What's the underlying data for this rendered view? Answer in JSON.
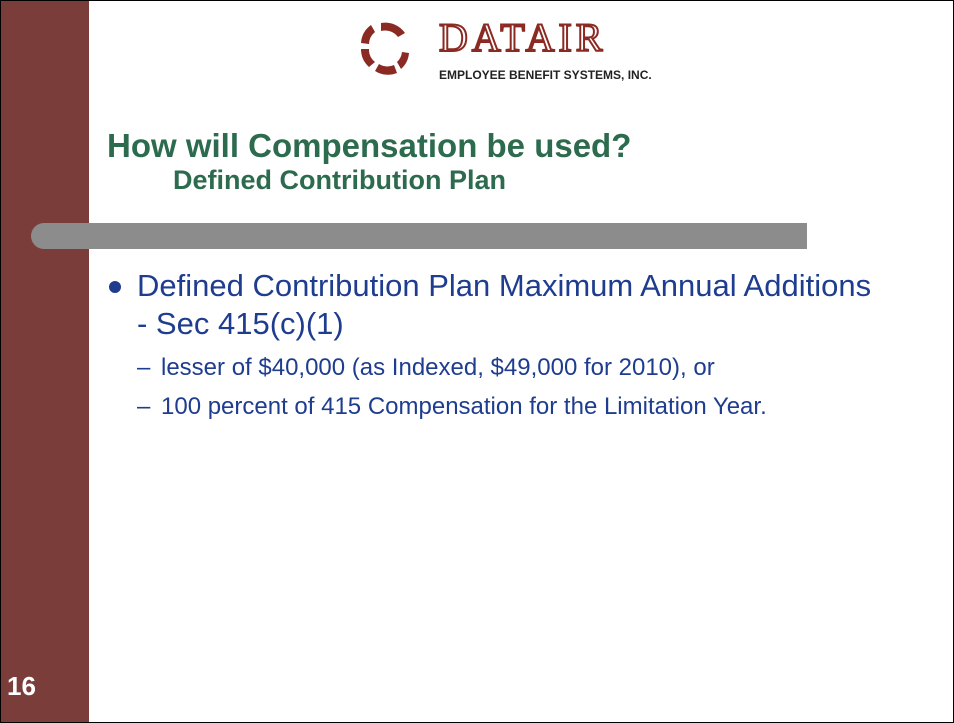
{
  "header": {
    "logo_name": "DATAIR",
    "logo_tagline": "EMPLOYEE BENEFIT SYSTEMS, INC."
  },
  "title": "How will Compensation be used?",
  "subtitle": "Defined Contribution Plan",
  "bullets": [
    {
      "text": "Defined Contribution Plan Maximum Annual Additions - Sec 415(c)(1)",
      "subitems": [
        "lesser of $40,000 (as Indexed, $49,000 for 2010), or",
        "100 percent of 415 Compensation for the Limitation Year."
      ]
    }
  ],
  "slide_number": "16"
}
